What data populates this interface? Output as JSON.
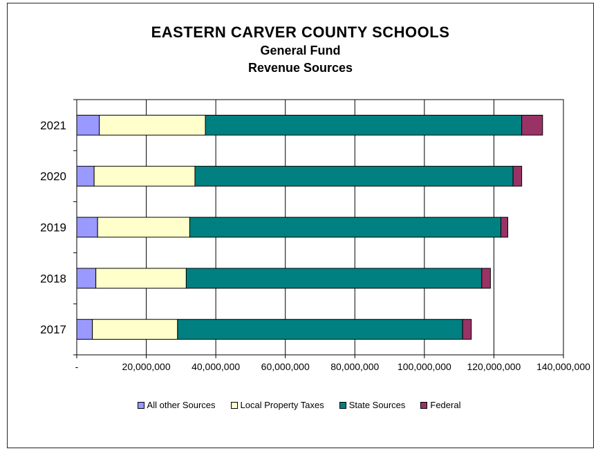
{
  "chart_data": {
    "type": "bar",
    "orientation": "horizontal",
    "stacked": true,
    "title": "EASTERN  CARVER COUNTY SCHOOLS",
    "subtitle_1": "General Fund",
    "subtitle_2": "Revenue Sources",
    "categories": [
      "2021",
      "2020",
      "2019",
      "2018",
      "2017"
    ],
    "series": [
      {
        "name": "All other Sources",
        "color": "#9999ff",
        "values": [
          6500000,
          5000000,
          6000000,
          5500000,
          4500000
        ]
      },
      {
        "name": "Local Property Taxes",
        "color": "#ffffcc",
        "values": [
          30500000,
          29000000,
          26500000,
          26000000,
          24500000
        ]
      },
      {
        "name": "State Sources",
        "color": "#008080",
        "values": [
          91000000,
          91500000,
          89500000,
          85000000,
          82000000
        ]
      },
      {
        "name": "Federal",
        "color": "#993366",
        "values": [
          6000000,
          2500000,
          2000000,
          2500000,
          2500000
        ]
      }
    ],
    "xlim": [
      0,
      140000000
    ],
    "x_tick_labels": [
      "-",
      "20,000,000",
      "40,000,000",
      "60,000,000",
      "80,000,000",
      "100,000,000",
      "120,000,000",
      "140,000,000"
    ],
    "x_ticks": [
      0,
      20000000,
      40000000,
      60000000,
      80000000,
      100000000,
      120000000,
      140000000
    ],
    "grid": "vertical",
    "legend_position": "bottom"
  }
}
